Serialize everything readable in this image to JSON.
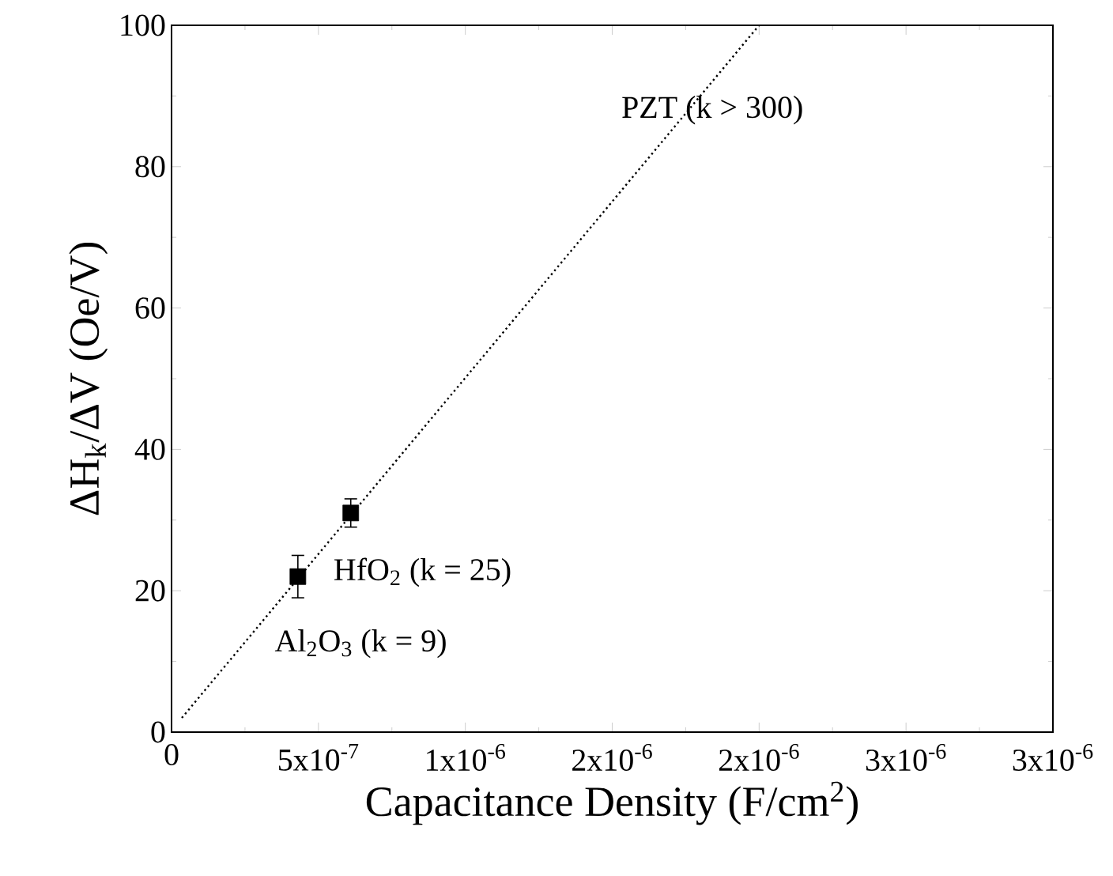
{
  "chart_data": {
    "type": "scatter",
    "xlabel": "Capacitance Density (F/cm$^{2}$)",
    "ylabel": "ΔH$_{k}$/ΔV (Oe/V)",
    "xlim": [
      0,
      3e-06
    ],
    "ylim": [
      0,
      100
    ],
    "xticks": [
      {
        "value": 0,
        "label": "0"
      },
      {
        "value": 5e-07,
        "label": "5x10$^{-7}$"
      },
      {
        "value": 1e-06,
        "label": "1x10$^{-6}$"
      },
      {
        "value": 1.5e-06,
        "label": "2x10$^{-6}$"
      },
      {
        "value": 2e-06,
        "label": "2x10$^{-6}$"
      },
      {
        "value": 2.5e-06,
        "label": "3x10$^{-6}$"
      },
      {
        "value": 3e-06,
        "label": "3x10$^{-6}$"
      }
    ],
    "yticks": [
      0,
      20,
      40,
      60,
      80,
      100
    ],
    "series": [
      {
        "color": "#000000",
        "marker": "square",
        "x": [
          4.3e-07,
          6.1e-07
        ],
        "values": [
          22,
          31
        ],
        "errors": [
          3,
          2
        ]
      },
      {
        "type": "line",
        "color": "#000000",
        "marker": "none",
        "line_style": "dotted",
        "x": [
          3.5e-08,
          2e-06
        ],
        "values": [
          2,
          100
        ]
      }
    ],
    "annotations": [
      "HfO$_{2}$ (k = 25)",
      "Al$_{2}$O$_{3}$ (k = 9)",
      "PZT (k > 300)"
    ],
    "grid": false
  }
}
